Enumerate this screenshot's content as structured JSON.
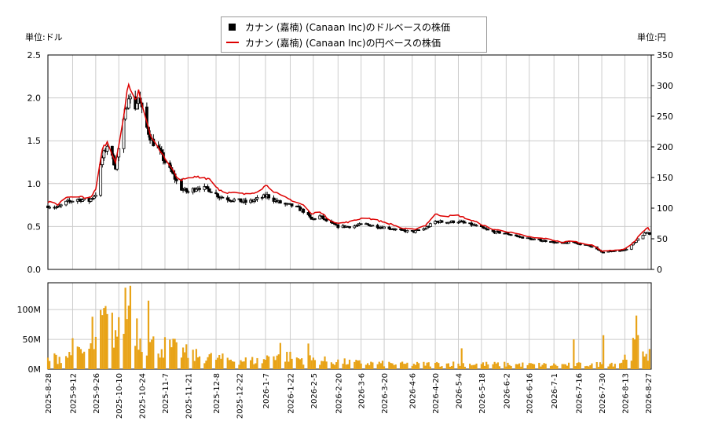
{
  "legend": {
    "series_usd": "カナン (嘉楠) (Canaan Inc)のドルベースの株価",
    "series_jpy": "カナン (嘉楠) (Canaan Inc)の円ベースの株価"
  },
  "axis_unit_left": "単位:ドル",
  "axis_unit_right": "単位:円",
  "colors": {
    "usd": "#000000",
    "jpy": "#dd0000",
    "volume": "#e8a317",
    "grid": "#cccccc"
  },
  "chart_data": [
    {
      "type": "line",
      "ylabel_left": "単位:ドル",
      "ylabel_right": "単位:円",
      "ylim_left": [
        0,
        2.5
      ],
      "ylim_right": [
        0,
        350
      ],
      "yticks_left": [
        "0.0",
        "0.5",
        "1.0",
        "1.5",
        "2.0",
        "2.5"
      ],
      "yticks_right": [
        "0",
        "50",
        "100",
        "150",
        "200",
        "250",
        "300",
        "350"
      ],
      "grid": true,
      "legend_position": "top-center",
      "x_start": "2025-08-28",
      "x_end": "2026-08-29",
      "series": [
        {
          "name": "カナン (嘉楠) (Canaan Inc)のドルベースの株価",
          "points": [
            [
              "2025-08-28",
              0.74
            ],
            [
              "2025-09-03",
              0.72
            ],
            [
              "2025-09-08",
              0.78
            ],
            [
              "2025-09-15",
              0.82
            ],
            [
              "2025-09-22",
              0.8
            ],
            [
              "2025-09-26",
              0.88
            ],
            [
              "2025-09-30",
              1.3
            ],
            [
              "2025-10-03",
              1.45
            ],
            [
              "2025-10-08",
              1.2
            ],
            [
              "2025-10-12",
              1.6
            ],
            [
              "2025-10-16",
              2.05
            ],
            [
              "2025-10-19",
              1.85
            ],
            [
              "2025-10-22",
              2.0
            ],
            [
              "2025-10-26",
              1.7
            ],
            [
              "2025-10-30",
              1.5
            ],
            [
              "2025-11-03",
              1.4
            ],
            [
              "2025-11-07",
              1.25
            ],
            [
              "2025-11-12",
              1.1
            ],
            [
              "2025-11-16",
              0.95
            ],
            [
              "2025-11-21",
              0.9
            ],
            [
              "2025-11-27",
              0.96
            ],
            [
              "2025-12-04",
              0.93
            ],
            [
              "2025-12-10",
              0.85
            ],
            [
              "2025-12-16",
              0.82
            ],
            [
              "2025-12-22",
              0.8
            ],
            [
              "2025-12-27",
              0.78
            ],
            [
              "2026-01-02",
              0.82
            ],
            [
              "2026-01-08",
              0.86
            ],
            [
              "2026-01-13",
              0.8
            ],
            [
              "2026-01-18",
              0.76
            ],
            [
              "2026-01-24",
              0.74
            ],
            [
              "2026-01-30",
              0.68
            ],
            [
              "2026-02-04",
              0.58
            ],
            [
              "2026-02-09",
              0.62
            ],
            [
              "2026-02-14",
              0.55
            ],
            [
              "2026-02-20",
              0.5
            ],
            [
              "2026-02-28",
              0.5
            ],
            [
              "2026-03-08",
              0.53
            ],
            [
              "2026-03-16",
              0.5
            ],
            [
              "2026-03-24",
              0.48
            ],
            [
              "2026-03-31",
              0.45
            ],
            [
              "2026-04-07",
              0.44
            ],
            [
              "2026-04-14",
              0.48
            ],
            [
              "2026-04-20",
              0.56
            ],
            [
              "2026-04-26",
              0.55
            ],
            [
              "2026-05-04",
              0.56
            ],
            [
              "2026-05-10",
              0.53
            ],
            [
              "2026-05-16",
              0.5
            ],
            [
              "2026-05-24",
              0.44
            ],
            [
              "2026-06-02",
              0.42
            ],
            [
              "2026-06-10",
              0.38
            ],
            [
              "2026-06-18",
              0.35
            ],
            [
              "2026-06-27",
              0.33
            ],
            [
              "2026-07-06",
              0.3
            ],
            [
              "2026-07-12",
              0.32
            ],
            [
              "2026-07-18",
              0.29
            ],
            [
              "2026-07-24",
              0.27
            ],
            [
              "2026-07-30",
              0.2
            ],
            [
              "2026-08-05",
              0.21
            ],
            [
              "2026-08-11",
              0.22
            ],
            [
              "2026-08-15",
              0.25
            ],
            [
              "2026-08-19",
              0.32
            ],
            [
              "2026-08-23",
              0.4
            ],
            [
              "2026-08-27",
              0.44
            ],
            [
              "2026-08-29",
              0.4
            ]
          ]
        },
        {
          "name": "カナン (嘉楠) (Canaan Inc)の円ベースの株価",
          "points": [
            [
              "2025-08-28",
              110
            ],
            [
              "2025-09-03",
              106
            ],
            [
              "2025-09-08",
              118
            ],
            [
              "2025-09-15",
              120
            ],
            [
              "2025-09-22",
              116
            ],
            [
              "2025-09-26",
              130
            ],
            [
              "2025-09-30",
              195
            ],
            [
              "2025-10-03",
              210
            ],
            [
              "2025-10-08",
              175
            ],
            [
              "2025-10-12",
              235
            ],
            [
              "2025-10-16",
              305
            ],
            [
              "2025-10-19",
              270
            ],
            [
              "2025-10-22",
              290
            ],
            [
              "2025-10-26",
              245
            ],
            [
              "2025-10-30",
              215
            ],
            [
              "2025-11-03",
              200
            ],
            [
              "2025-11-07",
              180
            ],
            [
              "2025-11-12",
              160
            ],
            [
              "2025-11-16",
              145
            ],
            [
              "2025-11-21",
              148
            ],
            [
              "2025-11-27",
              152
            ],
            [
              "2025-12-04",
              148
            ],
            [
              "2025-12-10",
              130
            ],
            [
              "2025-12-16",
              125
            ],
            [
              "2025-12-22",
              124
            ],
            [
              "2025-12-27",
              122
            ],
            [
              "2026-01-02",
              128
            ],
            [
              "2026-01-08",
              138
            ],
            [
              "2026-01-13",
              125
            ],
            [
              "2026-01-18",
              118
            ],
            [
              "2026-01-24",
              112
            ],
            [
              "2026-01-30",
              105
            ],
            [
              "2026-02-04",
              90
            ],
            [
              "2026-02-09",
              95
            ],
            [
              "2026-02-14",
              82
            ],
            [
              "2026-02-20",
              75
            ],
            [
              "2026-02-28",
              78
            ],
            [
              "2026-03-08",
              85
            ],
            [
              "2026-03-16",
              80
            ],
            [
              "2026-03-24",
              74
            ],
            [
              "2026-03-31",
              67
            ],
            [
              "2026-04-07",
              65
            ],
            [
              "2026-04-14",
              72
            ],
            [
              "2026-04-20",
              90
            ],
            [
              "2026-04-26",
              87
            ],
            [
              "2026-05-04",
              88
            ],
            [
              "2026-05-10",
              82
            ],
            [
              "2026-05-16",
              76
            ],
            [
              "2026-05-24",
              66
            ],
            [
              "2026-06-02",
              62
            ],
            [
              "2026-06-10",
              57
            ],
            [
              "2026-06-18",
              52
            ],
            [
              "2026-06-27",
              50
            ],
            [
              "2026-07-06",
              44
            ],
            [
              "2026-07-12",
              47
            ],
            [
              "2026-07-18",
              42
            ],
            [
              "2026-07-24",
              40
            ],
            [
              "2026-07-30",
              30
            ],
            [
              "2026-08-05",
              31
            ],
            [
              "2026-08-11",
              32
            ],
            [
              "2026-08-15",
              36
            ],
            [
              "2026-08-19",
              46
            ],
            [
              "2026-08-23",
              60
            ],
            [
              "2026-08-27",
              68
            ],
            [
              "2026-08-29",
              58
            ]
          ]
        }
      ]
    },
    {
      "type": "bar",
      "ylim": [
        0,
        145
      ],
      "yticks": [
        "0M",
        "50M",
        "100M"
      ],
      "grid": true,
      "x_tick_labels": [
        "2025-8-28",
        "2025-9-12",
        "2025-9-26",
        "2025-10-10",
        "2025-10-24",
        "2025-11-7",
        "2025-11-21",
        "2025-12-8",
        "2025-12-22",
        "2026-1-7",
        "2026-1-22",
        "2026-2-5",
        "2026-2-20",
        "2026-3-6",
        "2026-3-20",
        "2026-4-6",
        "2026-4-20",
        "2026-5-4",
        "2026-5-18",
        "2026-6-2",
        "2026-6-16",
        "2026-7-1",
        "2026-7-16",
        "2026-7-30",
        "2026-8-13",
        "2026-8-27"
      ],
      "volume_profile_millions": [
        [
          "2025-08-28",
          18
        ],
        [
          "2025-09-08",
          25
        ],
        [
          "2025-09-20",
          30
        ],
        [
          "2025-09-26",
          50
        ],
        [
          "2025-10-01",
          90
        ],
        [
          "2025-10-06",
          75
        ],
        [
          "2025-10-10",
          65
        ],
        [
          "2025-10-14",
          120
        ],
        [
          "2025-10-18",
          110
        ],
        [
          "2025-10-23",
          60
        ],
        [
          "2025-10-30",
          45
        ],
        [
          "2025-11-10",
          40
        ],
        [
          "2025-11-25",
          25
        ],
        [
          "2025-12-15",
          18
        ],
        [
          "2026-01-05",
          15
        ],
        [
          "2026-01-12",
          30
        ],
        [
          "2026-01-25",
          20
        ],
        [
          "2026-02-10",
          16
        ],
        [
          "2026-03-01",
          12
        ],
        [
          "2026-04-01",
          9
        ],
        [
          "2026-05-01",
          10
        ],
        [
          "2026-06-01",
          9
        ],
        [
          "2026-07-01",
          8
        ],
        [
          "2026-07-28",
          9
        ],
        [
          "2026-08-10",
          12
        ],
        [
          "2026-08-20",
          45
        ],
        [
          "2026-08-29",
          28
        ]
      ],
      "volume_spikes_millions": [
        [
          "2025-09-12",
          52
        ],
        [
          "2025-09-24",
          88
        ],
        [
          "2025-10-05",
          128
        ],
        [
          "2025-10-12",
          150
        ],
        [
          "2025-10-17",
          140
        ],
        [
          "2025-10-28",
          115
        ],
        [
          "2026-01-16",
          44
        ],
        [
          "2026-02-02",
          43
        ],
        [
          "2026-05-06",
          35
        ],
        [
          "2026-07-13",
          50
        ],
        [
          "2026-07-31",
          57
        ],
        [
          "2026-08-20",
          90
        ]
      ]
    }
  ]
}
